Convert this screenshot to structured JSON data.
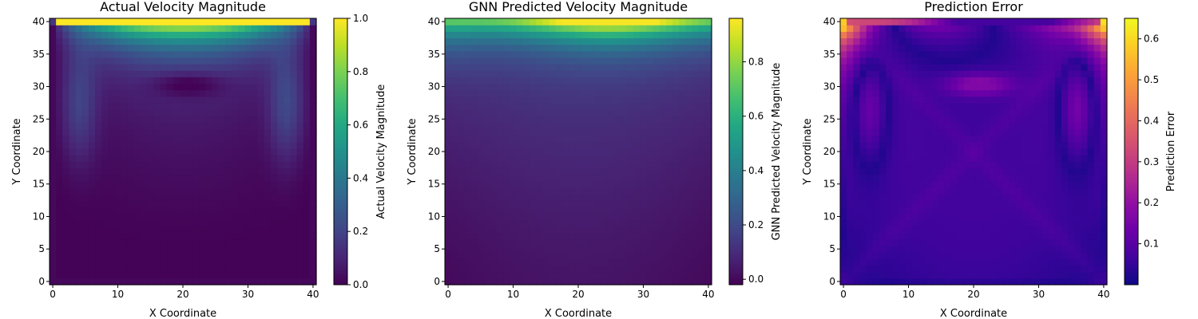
{
  "chart_data": [
    {
      "type": "heatmap",
      "title": "Actual Velocity Magnitude",
      "xlabel": "X Coordinate",
      "ylabel": "Y Coordinate",
      "colorbar_label": "Actual Velocity Magnitude",
      "colormap": "viridis",
      "field": "actual",
      "grid_size": 41,
      "xlim": [
        -0.5,
        40.5
      ],
      "ylim": [
        -0.5,
        40.5
      ],
      "x_ticks": [
        0,
        10,
        20,
        30,
        40
      ],
      "y_ticks": [
        0,
        5,
        10,
        15,
        20,
        25,
        30,
        35,
        40
      ],
      "vmin": 0.0,
      "vmax": 1.0,
      "colorbar_ticks": [
        0.0,
        0.2,
        0.4,
        0.6,
        0.8,
        1.0
      ],
      "colorbar_tick_labels": [
        "0.0",
        "0.2",
        "0.4",
        "0.6",
        "0.8",
        "1.0"
      ],
      "grid": false
    },
    {
      "type": "heatmap",
      "title": "GNN Predicted Velocity Magnitude",
      "xlabel": "X Coordinate",
      "ylabel": "Y Coordinate",
      "colorbar_label": "GNN Predicted Velocity Magnitude",
      "colormap": "viridis",
      "field": "predicted",
      "grid_size": 41,
      "xlim": [
        -0.5,
        40.5
      ],
      "ylim": [
        -0.5,
        40.5
      ],
      "x_ticks": [
        0,
        10,
        20,
        30,
        40
      ],
      "y_ticks": [
        0,
        5,
        10,
        15,
        20,
        25,
        30,
        35,
        40
      ],
      "vmin": -0.02,
      "vmax": 0.96,
      "colorbar_ticks": [
        0.0,
        0.2,
        0.4,
        0.6,
        0.8
      ],
      "colorbar_tick_labels": [
        "0.0",
        "0.2",
        "0.4",
        "0.6",
        "0.8"
      ],
      "grid": false
    },
    {
      "type": "heatmap",
      "title": "Prediction Error",
      "xlabel": "X Coordinate",
      "ylabel": "Y Coordinate",
      "colorbar_label": "Prediction Error",
      "colormap": "plasma",
      "field": "error",
      "grid_size": 41,
      "xlim": [
        -0.5,
        40.5
      ],
      "ylim": [
        -0.5,
        40.5
      ],
      "x_ticks": [
        0,
        10,
        20,
        30,
        40
      ],
      "y_ticks": [
        0,
        5,
        10,
        15,
        20,
        25,
        30,
        35,
        40
      ],
      "vmin": 0.0,
      "vmax": 0.65,
      "colorbar_ticks": [
        0.1,
        0.2,
        0.3,
        0.4,
        0.5,
        0.6
      ],
      "colorbar_tick_labels": [
        "0.1",
        "0.2",
        "0.3",
        "0.4",
        "0.5",
        "0.6"
      ],
      "grid": false
    }
  ]
}
